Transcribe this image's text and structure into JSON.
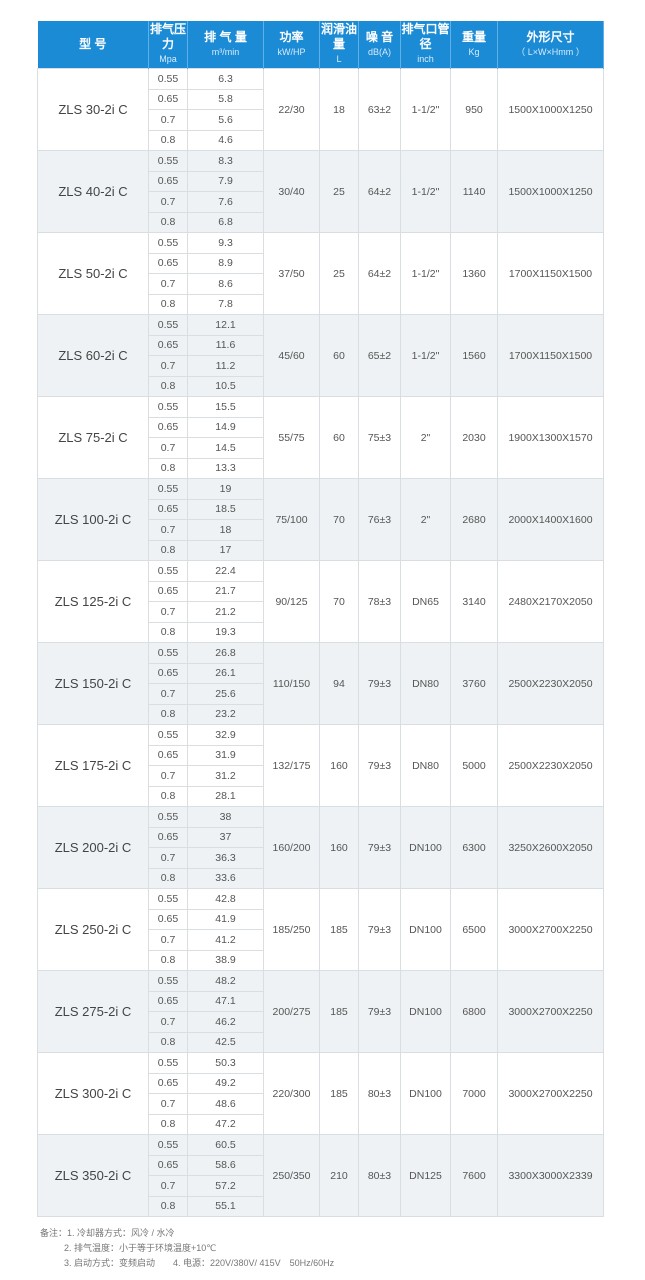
{
  "header": [
    {
      "title": "型 号",
      "sub": ""
    },
    {
      "title": "排气压力",
      "sub": "Mpa"
    },
    {
      "title": "排 气 量",
      "sub": "m³/min"
    },
    {
      "title": "功率",
      "sub": "kW/HP"
    },
    {
      "title": "润滑油量",
      "sub": "L"
    },
    {
      "title": "噪 音",
      "sub": "dB(A)"
    },
    {
      "title": "排气口管径",
      "sub": "inch"
    },
    {
      "title": "重量",
      "sub": "Kg"
    },
    {
      "title": "外形尺寸",
      "sub": "（ L×W×Hmm ）"
    }
  ],
  "pressures": [
    "0.55",
    "0.65",
    "0.7",
    "0.8"
  ],
  "models": [
    {
      "model": "ZLS 30-2i C",
      "flow": [
        "6.3",
        "5.8",
        "5.6",
        "4.6"
      ],
      "power": "22/30",
      "oil": "18",
      "noise": "63±2",
      "pipe": "1-1/2\"",
      "weight": "950",
      "dims": "1500X1000X1250"
    },
    {
      "model": "ZLS 40-2i C",
      "flow": [
        "8.3",
        "7.9",
        "7.6",
        "6.8"
      ],
      "power": "30/40",
      "oil": "25",
      "noise": "64±2",
      "pipe": "1-1/2\"",
      "weight": "1140",
      "dims": "1500X1000X1250"
    },
    {
      "model": "ZLS 50-2i C",
      "flow": [
        "9.3",
        "8.9",
        "8.6",
        "7.8"
      ],
      "power": "37/50",
      "oil": "25",
      "noise": "64±2",
      "pipe": "1-1/2\"",
      "weight": "1360",
      "dims": "1700X1150X1500"
    },
    {
      "model": "ZLS 60-2i C",
      "flow": [
        "12.1",
        "11.6",
        "11.2",
        "10.5"
      ],
      "power": "45/60",
      "oil": "60",
      "noise": "65±2",
      "pipe": "1-1/2\"",
      "weight": "1560",
      "dims": "1700X1150X1500"
    },
    {
      "model": "ZLS 75-2i C",
      "flow": [
        "15.5",
        "14.9",
        "14.5",
        "13.3"
      ],
      "power": "55/75",
      "oil": "60",
      "noise": "75±3",
      "pipe": "2\"",
      "weight": "2030",
      "dims": "1900X1300X1570"
    },
    {
      "model": "ZLS 100-2i C",
      "flow": [
        "19",
        "18.5",
        "18",
        "17"
      ],
      "power": "75/100",
      "oil": "70",
      "noise": "76±3",
      "pipe": "2\"",
      "weight": "2680",
      "dims": "2000X1400X1600"
    },
    {
      "model": "ZLS 125-2i C",
      "flow": [
        "22.4",
        "21.7",
        "21.2",
        "19.3"
      ],
      "power": "90/125",
      "oil": "70",
      "noise": "78±3",
      "pipe": "DN65",
      "weight": "3140",
      "dims": "2480X2170X2050"
    },
    {
      "model": "ZLS 150-2i C",
      "flow": [
        "26.8",
        "26.1",
        "25.6",
        "23.2"
      ],
      "power": "110/150",
      "oil": "94",
      "noise": "79±3",
      "pipe": "DN80",
      "weight": "3760",
      "dims": "2500X2230X2050"
    },
    {
      "model": "ZLS 175-2i C",
      "flow": [
        "32.9",
        "31.9",
        "31.2",
        "28.1"
      ],
      "power": "132/175",
      "oil": "160",
      "noise": "79±3",
      "pipe": "DN80",
      "weight": "5000",
      "dims": "2500X2230X2050"
    },
    {
      "model": "ZLS 200-2i C",
      "flow": [
        "38",
        "37",
        "36.3",
        "33.6"
      ],
      "power": "160/200",
      "oil": "160",
      "noise": "79±3",
      "pipe": "DN100",
      "weight": "6300",
      "dims": "3250X2600X2050"
    },
    {
      "model": "ZLS 250-2i C",
      "flow": [
        "42.8",
        "41.9",
        "41.2",
        "38.9"
      ],
      "power": "185/250",
      "oil": "185",
      "noise": "79±3",
      "pipe": "DN100",
      "weight": "6500",
      "dims": "3000X2700X2250"
    },
    {
      "model": "ZLS 275-2i C",
      "flow": [
        "48.2",
        "47.1",
        "46.2",
        "42.5"
      ],
      "power": "200/275",
      "oil": "185",
      "noise": "79±3",
      "pipe": "DN100",
      "weight": "6800",
      "dims": "3000X2700X2250"
    },
    {
      "model": "ZLS 300-2i C",
      "flow": [
        "50.3",
        "49.2",
        "48.6",
        "47.2"
      ],
      "power": "220/300",
      "oil": "185",
      "noise": "80±3",
      "pipe": "DN100",
      "weight": "7000",
      "dims": "3000X2700X2250"
    },
    {
      "model": "ZLS 350-2i C",
      "flow": [
        "60.5",
        "58.6",
        "57.2",
        "55.1"
      ],
      "power": "250/350",
      "oil": "210",
      "noise": "80±3",
      "pipe": "DN125",
      "weight": "7600",
      "dims": "3300X3000X2339"
    }
  ],
  "notes": {
    "line1": "备注：1. 冷却器方式：风冷 / 水冷",
    "line2": "2. 排气温度：小于等于环境温度+10℃",
    "line3": "3. 启动方式：变频启动　　4. 电源：220V/380V/ 415V　50Hz/60Hz"
  },
  "colors": {
    "header": "#1b8bd6",
    "shade": "#eef2f4"
  }
}
